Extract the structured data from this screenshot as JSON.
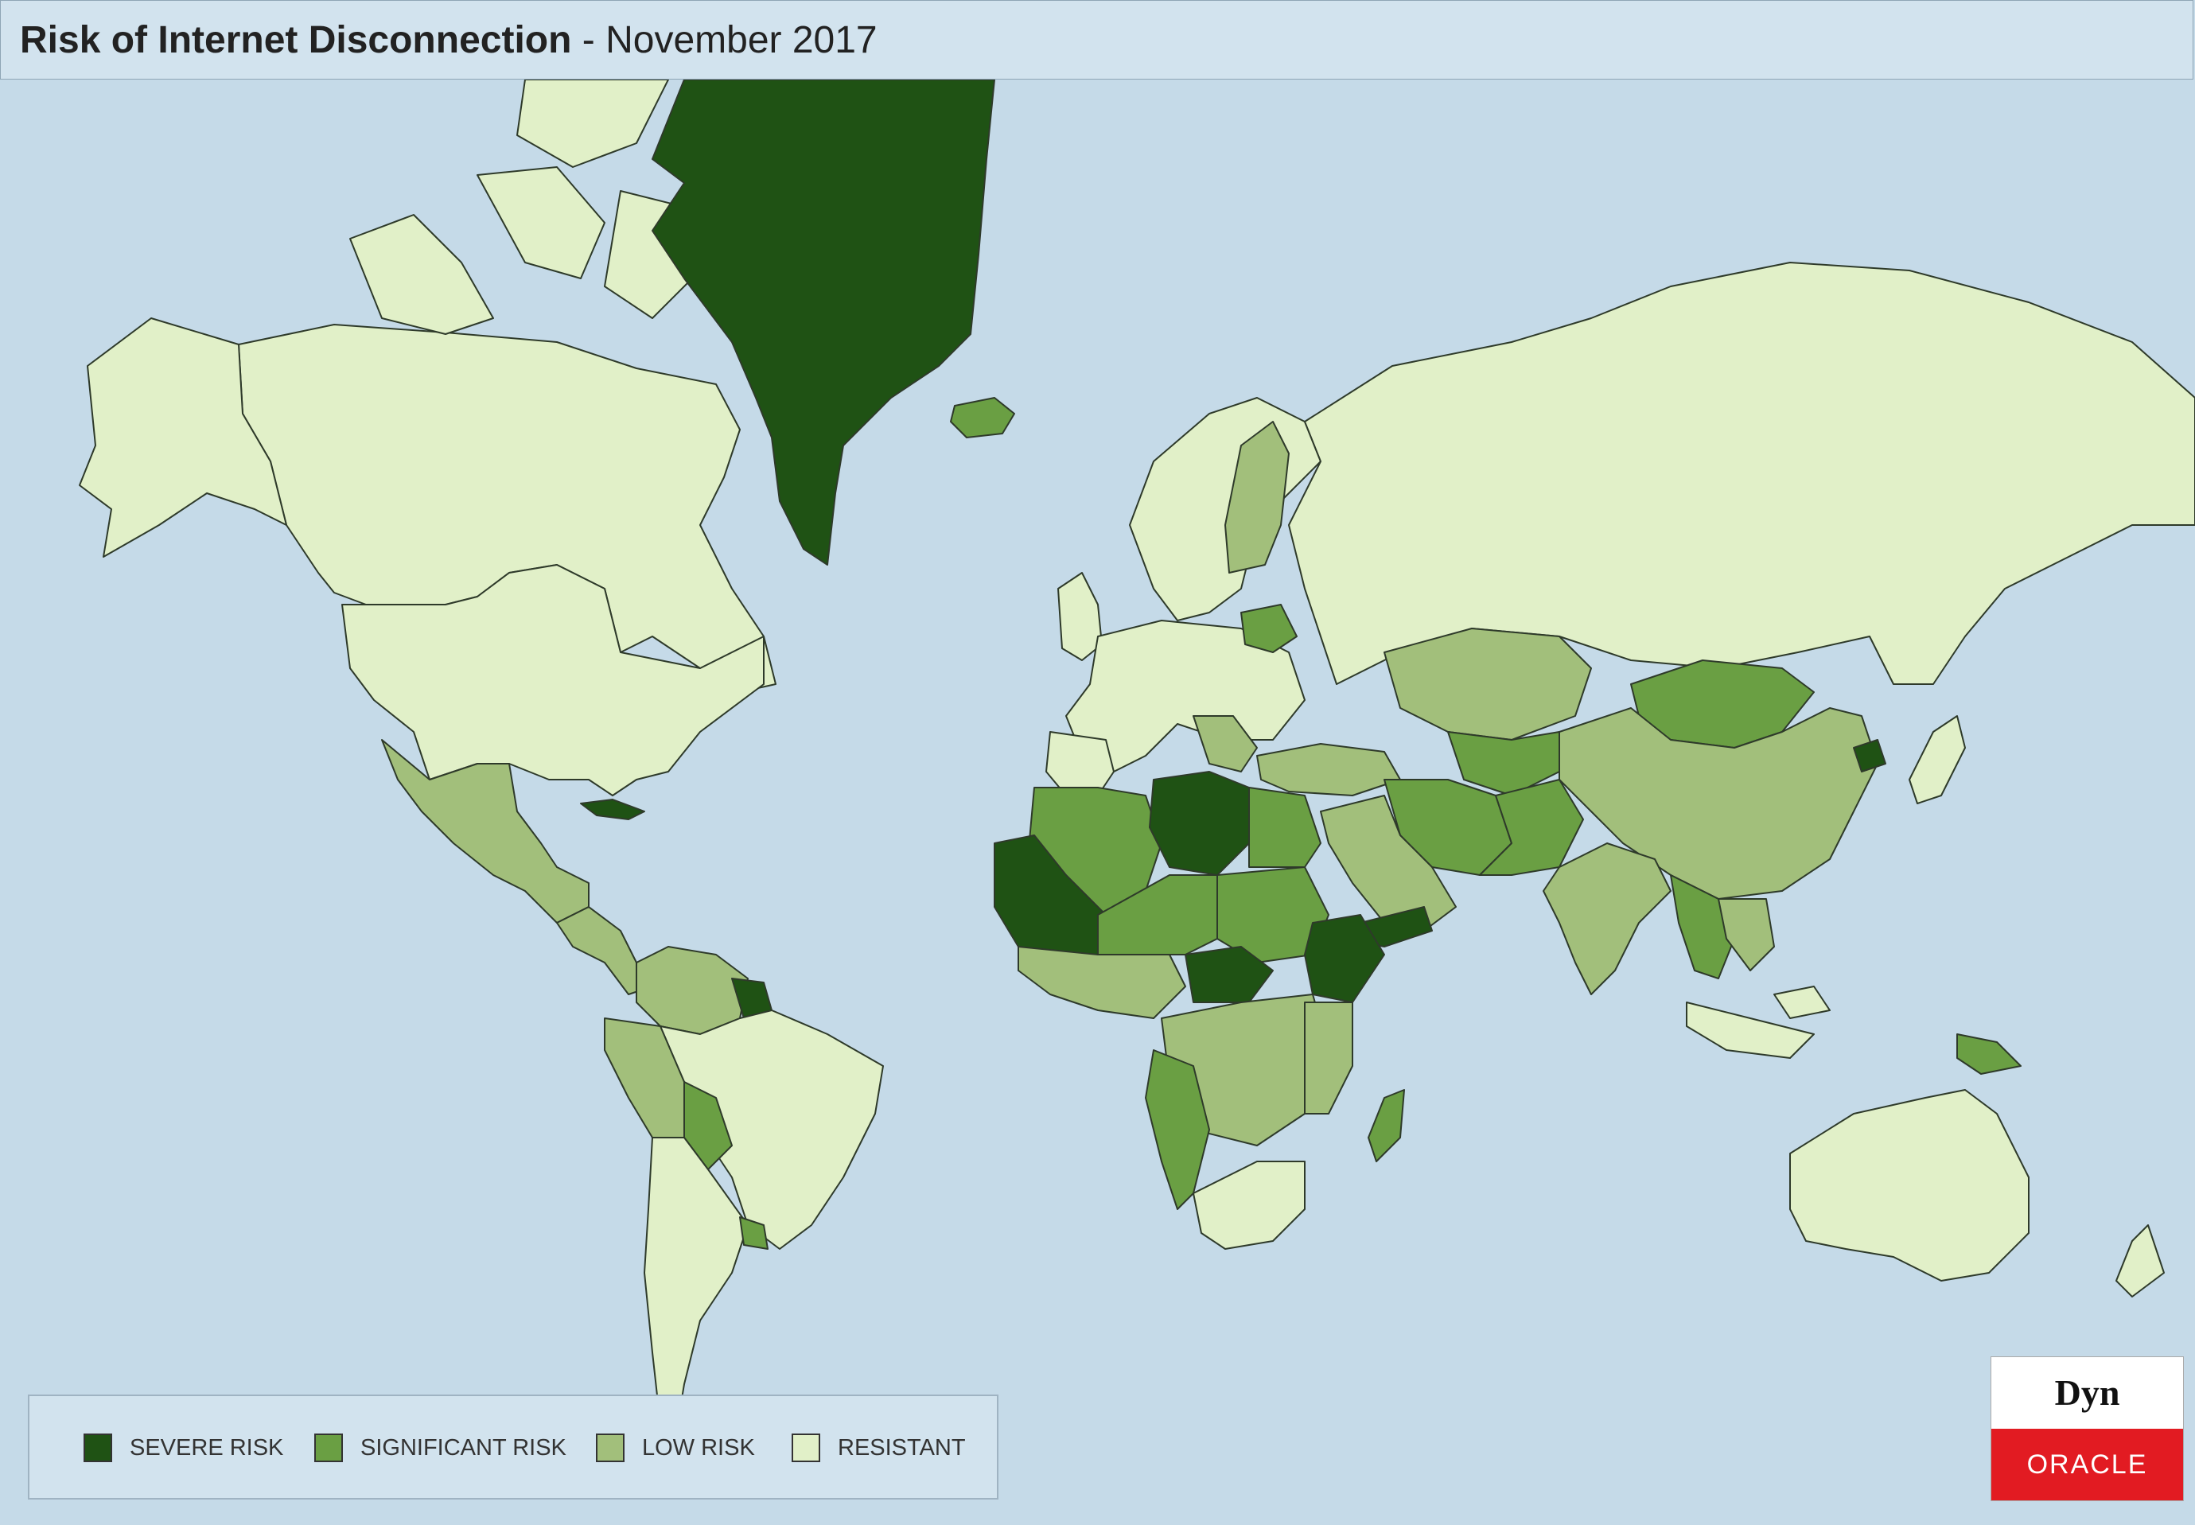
{
  "header": {
    "title_bold": "Risk of Internet Disconnection",
    "title_rest": " - November 2017"
  },
  "colors": {
    "ocean": "#c5dae8",
    "severe": "#1f5214",
    "significant": "#6a9f43",
    "low": "#a2bf7b",
    "resistant": "#e1f0c8",
    "border": "#2e3a2a"
  },
  "legend": {
    "items": [
      {
        "label": "SEVERE RISK",
        "color": "#1f5214"
      },
      {
        "label": "SIGNIFICANT RISK",
        "color": "#6a9f43"
      },
      {
        "label": "LOW RISK",
        "color": "#a2bf7b"
      },
      {
        "label": "RESISTANT",
        "color": "#e1f0c8"
      }
    ]
  },
  "logo": {
    "top_text": "Dyn",
    "bottom_text": "ORACLE"
  }
}
